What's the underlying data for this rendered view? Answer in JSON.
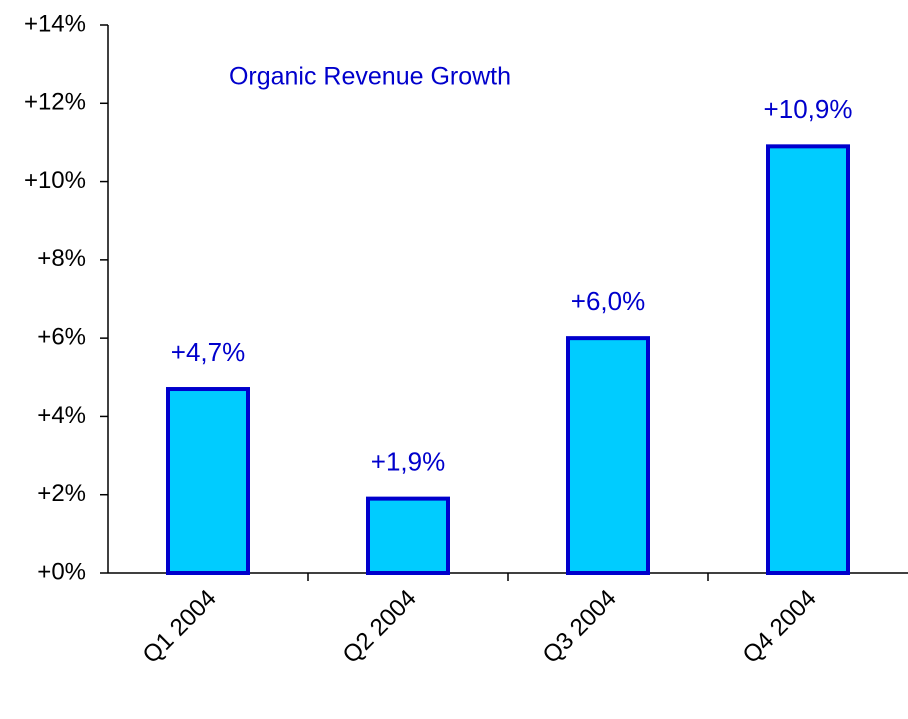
{
  "chart_data": {
    "type": "bar",
    "title": "Organic Revenue Growth",
    "categories": [
      "Q1 2004",
      "Q2 2004",
      "Q3 2004",
      "Q4 2004"
    ],
    "values": [
      4.7,
      1.9,
      6.0,
      10.9
    ],
    "value_labels": [
      "+4,7%",
      "+1,9%",
      "+6,0%",
      "+10,9%"
    ],
    "color": "#00ccff",
    "ylim": [
      0,
      14
    ],
    "yticks": [
      {
        "value": 0,
        "label": "+0%"
      },
      {
        "value": 2,
        "label": "+2%"
      },
      {
        "value": 4,
        "label": "+4%"
      },
      {
        "value": 6,
        "label": "+6%"
      },
      {
        "value": 8,
        "label": "+8%"
      },
      {
        "value": 10,
        "label": "+10%"
      },
      {
        "value": 12,
        "label": "+12%"
      },
      {
        "value": 14,
        "label": "+14%"
      }
    ],
    "grid": false
  }
}
